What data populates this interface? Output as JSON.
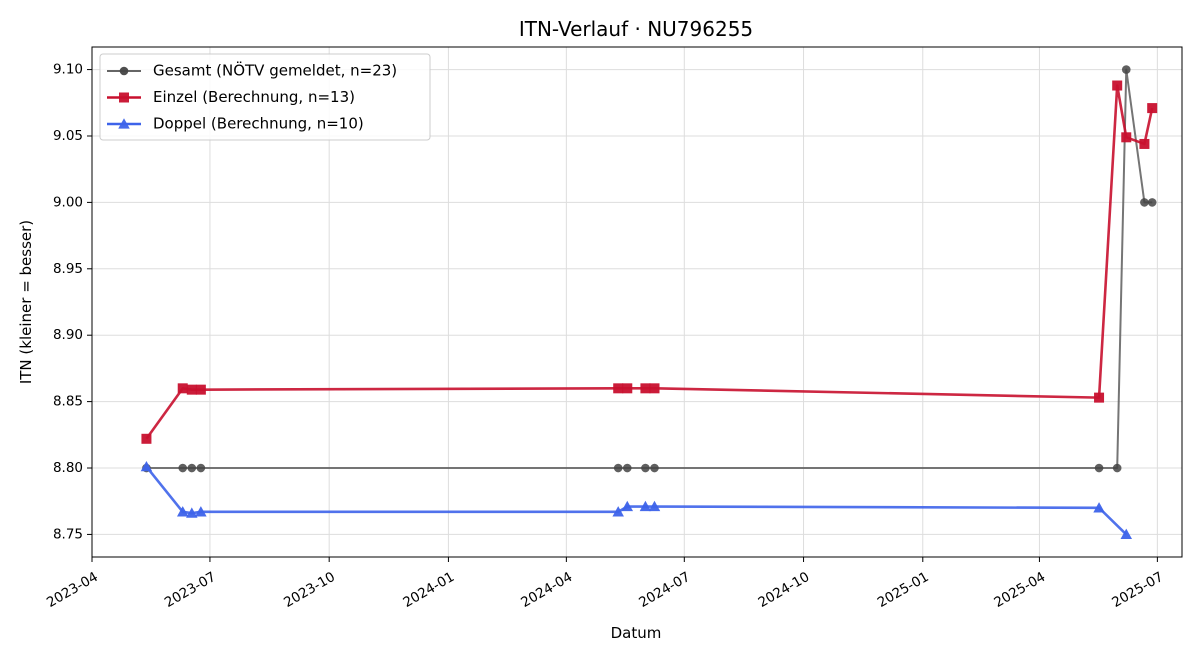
{
  "chart_data": {
    "type": "line",
    "title": "ITN-Verlauf · NU796255",
    "xlabel": "Datum",
    "ylabel": "ITN  (kleiner = besser)",
    "xlim": [
      "2023-04-01",
      "2025-07-20"
    ],
    "ylim": [
      8.733,
      9.117
    ],
    "grid": true,
    "legend_position": "top-left",
    "x_ticks": [
      "2023-04",
      "2023-07",
      "2023-10",
      "2024-01",
      "2024-04",
      "2024-07",
      "2024-10",
      "2025-01",
      "2025-04",
      "2025-07"
    ],
    "y_ticks": [
      "8.75",
      "8.80",
      "8.85",
      "8.90",
      "8.95",
      "9.00",
      "9.05",
      "9.10"
    ],
    "series": [
      {
        "name": "Gesamt (NÖTV gemeldet, n=23)",
        "color": "#666666",
        "marker_color": "#444444",
        "marker": "circle",
        "points": [
          {
            "x": "2023-05-13",
            "y": 8.8
          },
          {
            "x": "2023-06-10",
            "y": 8.8
          },
          {
            "x": "2023-06-17",
            "y": 8.8
          },
          {
            "x": "2023-06-24",
            "y": 8.8
          },
          {
            "x": "2024-05-11",
            "y": 8.8
          },
          {
            "x": "2024-05-18",
            "y": 8.8
          },
          {
            "x": "2024-06-01",
            "y": 8.8
          },
          {
            "x": "2024-06-08",
            "y": 8.8
          },
          {
            "x": "2025-05-17",
            "y": 8.8
          },
          {
            "x": "2025-05-31",
            "y": 8.8
          },
          {
            "x": "2025-06-07",
            "y": 9.1
          },
          {
            "x": "2025-06-21",
            "y": 9.0
          },
          {
            "x": "2025-06-27",
            "y": 9.0
          }
        ]
      },
      {
        "name": "Einzel (Berechnung, n=13)",
        "color": "#c8102e",
        "marker_color": "#c8102e",
        "marker": "square",
        "points": [
          {
            "x": "2023-05-13",
            "y": 8.822
          },
          {
            "x": "2023-06-10",
            "y": 8.86
          },
          {
            "x": "2023-06-17",
            "y": 8.859
          },
          {
            "x": "2023-06-24",
            "y": 8.859
          },
          {
            "x": "2024-05-11",
            "y": 8.86
          },
          {
            "x": "2024-05-18",
            "y": 8.86
          },
          {
            "x": "2024-06-01",
            "y": 8.86
          },
          {
            "x": "2024-06-08",
            "y": 8.86
          },
          {
            "x": "2025-05-17",
            "y": 8.853
          },
          {
            "x": "2025-05-31",
            "y": 9.088
          },
          {
            "x": "2025-06-07",
            "y": 9.049
          },
          {
            "x": "2025-06-21",
            "y": 9.044
          },
          {
            "x": "2025-06-27",
            "y": 9.071
          }
        ]
      },
      {
        "name": "Doppel (Berechnung, n=10)",
        "color": "#3d63ea",
        "marker_color": "#3d63ea",
        "marker": "triangle",
        "points": [
          {
            "x": "2023-05-13",
            "y": 8.801
          },
          {
            "x": "2023-06-10",
            "y": 8.767
          },
          {
            "x": "2023-06-17",
            "y": 8.766
          },
          {
            "x": "2023-06-24",
            "y": 8.767
          },
          {
            "x": "2024-05-11",
            "y": 8.767
          },
          {
            "x": "2024-05-18",
            "y": 8.771
          },
          {
            "x": "2024-06-01",
            "y": 8.771
          },
          {
            "x": "2024-06-08",
            "y": 8.771
          },
          {
            "x": "2025-05-17",
            "y": 8.77
          },
          {
            "x": "2025-06-07",
            "y": 8.75
          }
        ]
      }
    ]
  }
}
